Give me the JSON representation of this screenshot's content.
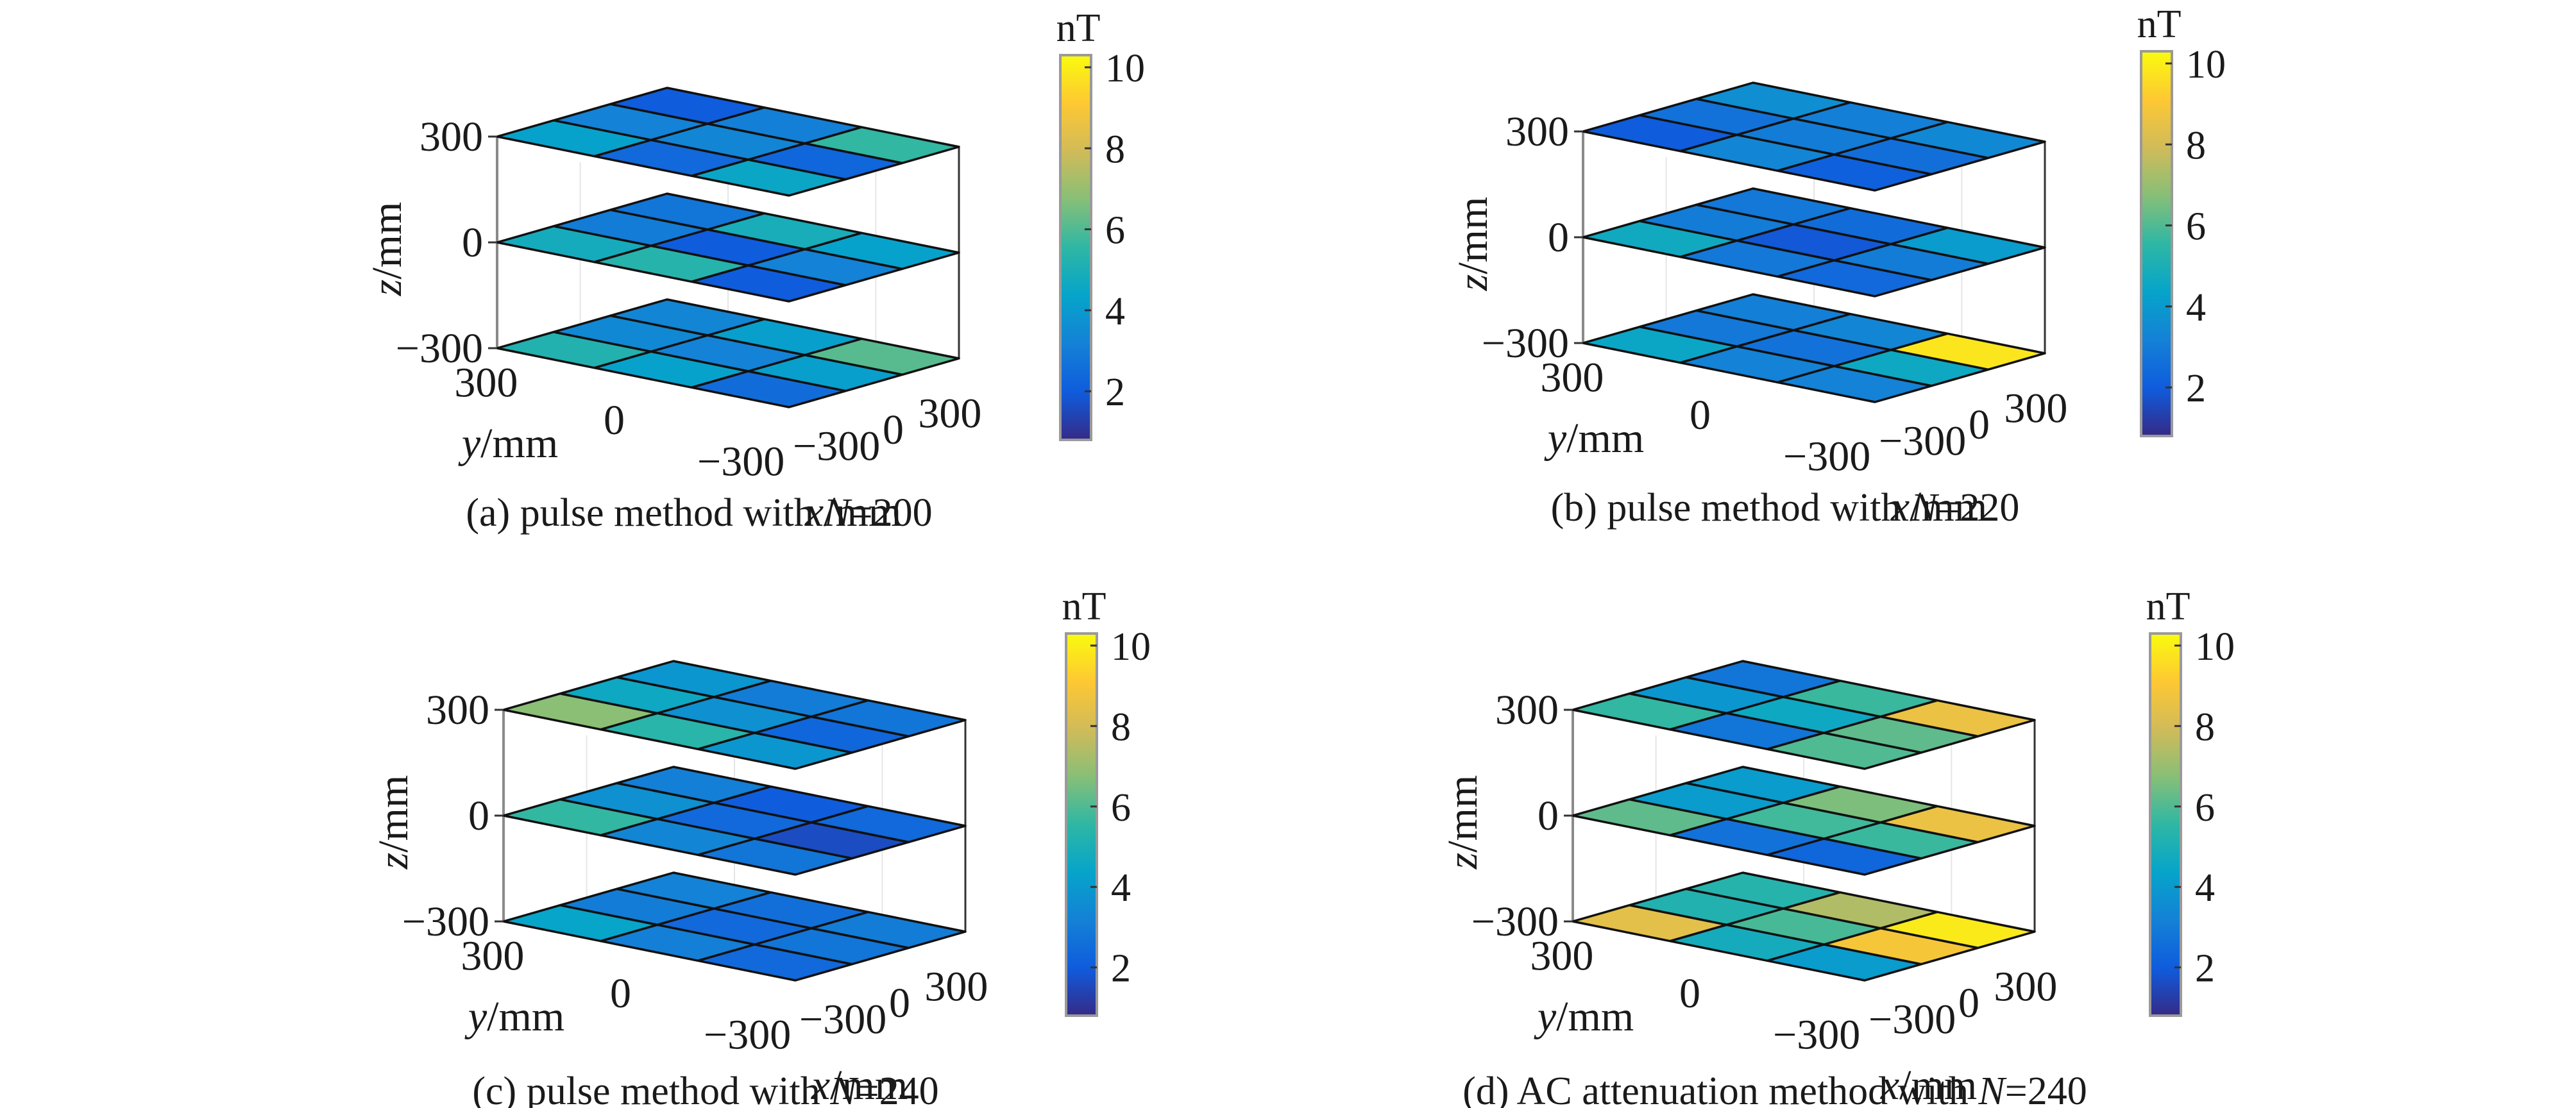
{
  "chart_data": [
    {
      "type": "heatmap",
      "panel": "a",
      "caption_prefix": "(a) pulse method with ",
      "caption_var": "N",
      "caption_suffix": "=200",
      "xlabel_var": "x",
      "ylabel_var": "y",
      "zlabel_var": "z",
      "unit": "/mm",
      "x_ticks": [
        "−300",
        "0",
        "300"
      ],
      "y_ticks": [
        "300",
        "0",
        "−300"
      ],
      "z_ticks": [
        "300",
        "0",
        "−300"
      ],
      "x_values": [
        -300,
        0,
        300
      ],
      "y_values": [
        300,
        0,
        -300
      ],
      "z_values": [
        300,
        0,
        -300
      ],
      "colorbar": {
        "label": "nT",
        "ticks": [
          "2",
          "4",
          "6",
          "8",
          "10"
        ],
        "range": [
          0.8,
          10.3
        ]
      },
      "layers": [
        {
          "z": 300,
          "grid": [
            [
              4.3,
              3.2,
              2.0
            ],
            [
              2.4,
              3.3,
              3.1
            ],
            [
              4.5,
              2.3,
              5.6
            ]
          ]
        },
        {
          "z": 0,
          "grid": [
            [
              4.8,
              3.0,
              2.8
            ],
            [
              5.3,
              2.0,
              4.9
            ],
            [
              2.0,
              3.2,
              4.3
            ]
          ]
        },
        {
          "z": -300,
          "grid": [
            [
              5.2,
              3.4,
              3.3
            ],
            [
              4.3,
              3.2,
              4.2
            ],
            [
              2.5,
              4.2,
              6.1
            ]
          ]
        }
      ]
    },
    {
      "type": "heatmap",
      "panel": "b",
      "caption_prefix": "(b) pulse method with ",
      "caption_var": "N",
      "caption_suffix": "=220",
      "xlabel_var": "x",
      "ylabel_var": "y",
      "zlabel_var": "z",
      "unit": "/mm",
      "x_ticks": [
        "−300",
        "0",
        "300"
      ],
      "y_ticks": [
        "300",
        "0",
        "−300"
      ],
      "z_ticks": [
        "300",
        "0",
        "−300"
      ],
      "x_values": [
        -300,
        0,
        300
      ],
      "y_values": [
        300,
        0,
        -300
      ],
      "z_values": [
        300,
        0,
        -300
      ],
      "colorbar": {
        "label": "nT",
        "ticks": [
          "2",
          "4",
          "6",
          "8",
          "10"
        ],
        "range": [
          0.8,
          10.3
        ]
      },
      "layers": [
        {
          "z": 300,
          "grid": [
            [
              2.0,
              2.7,
              3.6
            ],
            [
              3.3,
              3.0,
              3.1
            ],
            [
              2.1,
              2.6,
              3.4
            ]
          ]
        },
        {
          "z": 0,
          "grid": [
            [
              4.7,
              3.0,
              2.9
            ],
            [
              2.9,
              1.9,
              2.5
            ],
            [
              2.4,
              3.0,
              4.1
            ]
          ]
        },
        {
          "z": -300,
          "grid": [
            [
              4.5,
              2.9,
              3.1
            ],
            [
              3.2,
              2.7,
              3.3
            ],
            [
              3.2,
              4.6,
              9.8
            ]
          ]
        }
      ]
    },
    {
      "type": "heatmap",
      "panel": "c",
      "caption_prefix": "(c) pulse method with ",
      "caption_var": "N",
      "caption_suffix": "=240",
      "xlabel_var": "x",
      "ylabel_var": "y",
      "zlabel_var": "z",
      "unit": "/mm",
      "x_ticks": [
        "−300",
        "0",
        "300"
      ],
      "y_ticks": [
        "300",
        "0",
        "−300"
      ],
      "z_ticks": [
        "300",
        "0",
        "−300"
      ],
      "x_values": [
        -300,
        0,
        300
      ],
      "y_values": [
        300,
        0,
        -300
      ],
      "z_values": [
        300,
        0,
        -300
      ],
      "colorbar": {
        "label": "nT",
        "ticks": [
          "2",
          "4",
          "6",
          "8",
          "10"
        ],
        "range": [
          0.8,
          10.3
        ]
      },
      "layers": [
        {
          "z": 300,
          "grid": [
            [
              6.8,
              4.6,
              3.9
            ],
            [
              5.4,
              3.7,
              3.0
            ],
            [
              3.9,
              2.3,
              2.8
            ]
          ]
        },
        {
          "z": 0,
          "grid": [
            [
              5.6,
              3.7,
              3.1
            ],
            [
              3.3,
              2.4,
              2.0
            ],
            [
              2.8,
              1.6,
              2.4
            ]
          ]
        },
        {
          "z": -300,
          "grid": [
            [
              4.4,
              3.0,
              3.2
            ],
            [
              3.1,
              2.4,
              2.6
            ],
            [
              2.4,
              2.8,
              3.0
            ]
          ]
        }
      ]
    },
    {
      "type": "heatmap",
      "panel": "d",
      "caption_prefix": "(d) AC attenuation method with ",
      "caption_var": "N",
      "caption_suffix": "=240",
      "xlabel_var": "x",
      "ylabel_var": "y",
      "zlabel_var": "z",
      "unit": "/mm",
      "x_ticks": [
        "−300",
        "0",
        "300"
      ],
      "y_ticks": [
        "300",
        "0",
        "−300"
      ],
      "z_ticks": [
        "300",
        "0",
        "−300"
      ],
      "x_values": [
        -300,
        0,
        300
      ],
      "y_values": [
        300,
        0,
        -300
      ],
      "z_values": [
        300,
        0,
        -300
      ],
      "colorbar": {
        "label": "nT",
        "ticks": [
          "2",
          "4",
          "6",
          "8",
          "10"
        ],
        "range": [
          0.8,
          10.3
        ]
      },
      "layers": [
        {
          "z": 300,
          "grid": [
            [
              5.6,
              3.9,
              2.8
            ],
            [
              2.8,
              4.6,
              5.7
            ],
            [
              6.0,
              6.2,
              8.6
            ]
          ]
        },
        {
          "z": 0,
          "grid": [
            [
              6.2,
              4.1,
              4.1
            ],
            [
              2.7,
              5.8,
              6.6
            ],
            [
              2.3,
              5.7,
              8.6
            ]
          ]
        },
        {
          "z": -300,
          "grid": [
            [
              8.4,
              5.2,
              5.3
            ],
            [
              4.8,
              5.9,
              7.4
            ],
            [
              4.1,
              8.9,
              9.9
            ]
          ]
        }
      ]
    }
  ],
  "colormap": {
    "name": "parula",
    "stops": [
      "#352a87",
      "#0f5cdd",
      "#1481d6",
      "#06a4ca",
      "#2eb7a4",
      "#87bf77",
      "#d1bb59",
      "#fec832",
      "#f9fb0e"
    ]
  }
}
